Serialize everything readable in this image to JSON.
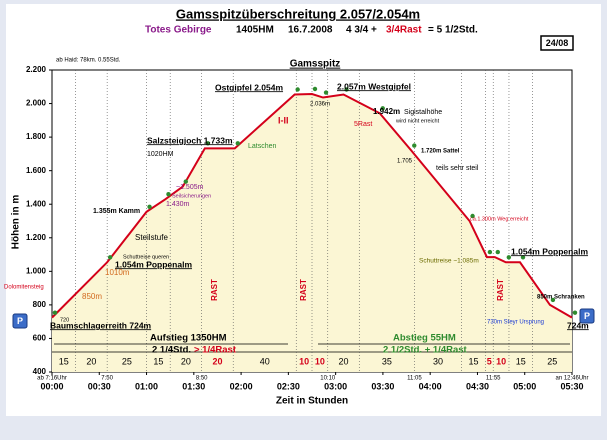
{
  "chart_data": {
    "type": "line",
    "title": "Gamsspitzüberschreitung  2.057/2.054m",
    "subtitle": {
      "region": "Totes Gebirge",
      "height_meters": "1405HM",
      "date": "16.7.2008",
      "walk": "4 3/4 +",
      "rest": "3/4Rast",
      "total": "= 5 1/2Std."
    },
    "tour_number": "24/08",
    "note": "ab Haid: 78km. 0.55Std.",
    "parking": "P",
    "x_label": "Zeit in Stunden",
    "y_label": "Höhen in m",
    "xlim": [
      0,
      330
    ],
    "ylim": [
      400,
      2200
    ],
    "xticks": [
      {
        "value": 0,
        "label": "00:00"
      },
      {
        "value": 30,
        "label": "00:30"
      },
      {
        "value": 60,
        "label": "01:00"
      },
      {
        "value": 90,
        "label": "01:30"
      },
      {
        "value": 120,
        "label": "02:00"
      },
      {
        "value": 150,
        "label": "02:30"
      },
      {
        "value": 180,
        "label": "03:00"
      },
      {
        "value": 210,
        "label": "03:30"
      },
      {
        "value": 240,
        "label": "04:00"
      },
      {
        "value": 270,
        "label": "04:30"
      },
      {
        "value": 300,
        "label": "05:00"
      },
      {
        "value": 330,
        "label": "05:30"
      }
    ],
    "yticks": [
      {
        "value": 400,
        "label": "400"
      },
      {
        "value": 600,
        "label": "600"
      },
      {
        "value": 800,
        "label": "800"
      },
      {
        "value": 1000,
        "label": "1.000"
      },
      {
        "value": 1200,
        "label": "1.200"
      },
      {
        "value": 1400,
        "label": "1.400"
      },
      {
        "value": 1600,
        "label": "1.600"
      },
      {
        "value": 1800,
        "label": "1.800"
      },
      {
        "value": 2000,
        "label": "2.000"
      },
      {
        "value": 2200,
        "label": "2.200"
      }
    ],
    "color": "#d4001a",
    "fill": "#fbf6d4",
    "x": [
      0,
      35,
      60,
      72,
      83,
      97,
      116,
      154,
      165,
      172,
      185,
      208,
      228,
      265,
      276,
      281,
      288,
      297,
      316,
      330
    ],
    "values": [
      724,
      1054,
      1355,
      1430,
      1505,
      1733,
      1733,
      2054,
      2057,
      2036,
      2054,
      1942,
      1720,
      1300,
      1085,
      1085,
      1054,
      1054,
      800,
      724
    ],
    "segments": [
      {
        "minutes": 15,
        "rest": false
      },
      {
        "minutes": 20,
        "rest": false
      },
      {
        "minutes": 25,
        "rest": false
      },
      {
        "minutes": 15,
        "rest": false
      },
      {
        "minutes": 20,
        "rest": false
      },
      {
        "minutes": 20,
        "rest": true
      },
      {
        "minutes": 40,
        "rest": false
      },
      {
        "minutes": 10,
        "rest": true
      },
      {
        "minutes": 10,
        "rest": true
      },
      {
        "minutes": 20,
        "rest": false
      },
      {
        "minutes": 35,
        "rest": false
      },
      {
        "minutes": 30,
        "rest": false
      },
      {
        "minutes": 15,
        "rest": false
      },
      {
        "minutes": 5,
        "rest": true
      },
      {
        "minutes": 10,
        "rest": true
      },
      {
        "minutes": 15,
        "rest": false
      },
      {
        "minutes": 25,
        "rest": false
      }
    ],
    "clock_times": [
      {
        "label": "ab 7:16Uhr",
        "minute": 0
      },
      {
        "label": "7:50",
        "minute": 35
      },
      {
        "label": "8:50",
        "minute": 95
      },
      {
        "label": "10:10",
        "minute": 175
      },
      {
        "label": "11:05",
        "minute": 230
      },
      {
        "label": "11:55",
        "minute": 280
      },
      {
        "label": "an 12:46Uhr",
        "minute": 330
      }
    ],
    "annotations": [
      "Baumschlagerreith 724m",
      "Dolomitensteig",
      "850m",
      "1.054m Poppenalm",
      "1010m",
      "Schuttreise queren",
      "Steilstufe",
      "1.355m Kamm",
      "1.430m",
      "Seilsicherungen",
      "~1.505m",
      "Salzsteigjoch 1.733m",
      "1020HM",
      "Latschen",
      "Ostgipfel 2.054m",
      "Gamsspitz",
      "2.057m Westgipfel",
      "2.036m",
      "1.942m",
      "Sigistalhöhe",
      "wird nicht erreicht",
      "5Rast",
      "I-II",
      "1.720m Sattel",
      "1.705",
      "teils sehr steil",
      "ca.1.300m Weg erreicht",
      "Schuttreise ~1.085m",
      "1.054m Poppenalm",
      "850m Schranken",
      "730m Steyr Ursprung",
      "724m",
      "Aufstieg 1350HM",
      "2 1/4Std.",
      "> 1/4Rast",
      "Abstieg 55HM",
      "2 1/2Std. + 1/4Rast",
      "RAST",
      "RAST",
      "RAST",
      "720"
    ]
  }
}
